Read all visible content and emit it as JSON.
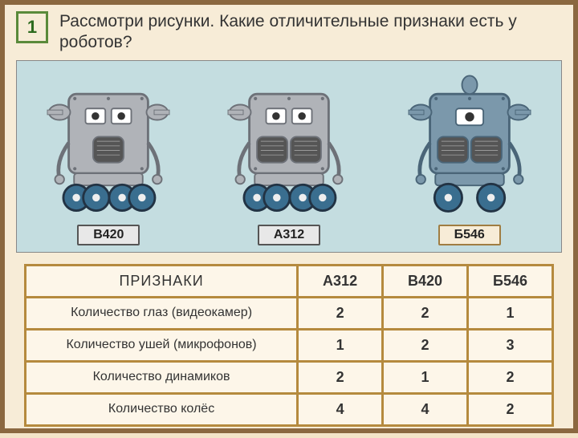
{
  "task_number": "1",
  "question": "Рассмотри рисунки. Какие отличительные признаки есть у роботов?",
  "robots": [
    {
      "id": "B420",
      "label": "В420",
      "body_color": "#b0b3b8",
      "body_stroke": "#6d7178",
      "wheels": 4,
      "eyes": 2,
      "ears": 2,
      "speakers": 1
    },
    {
      "id": "A312",
      "label": "А312",
      "body_color": "#b0b3b8",
      "body_stroke": "#6d7178",
      "wheels": 4,
      "eyes": 2,
      "ears": 1,
      "speakers": 2
    },
    {
      "id": "B546",
      "label": "Б546",
      "body_color": "#7b98ab",
      "body_stroke": "#4a6578",
      "wheels": 2,
      "eyes": 1,
      "ears": 3,
      "speakers": 2,
      "highlight": true
    }
  ],
  "table": {
    "header_feature": "ПРИЗНАКИ",
    "columns": [
      "А312",
      "В420",
      "Б546"
    ],
    "rows": [
      {
        "name": "Количество глаз (видеокамер)",
        "values": [
          "2",
          "2",
          "1"
        ]
      },
      {
        "name": "Количество ушей (микрофонов)",
        "values": [
          "1",
          "2",
          "3"
        ]
      },
      {
        "name": "Количество динамиков",
        "values": [
          "2",
          "1",
          "2"
        ]
      },
      {
        "name": "Количество колёс",
        "values": [
          "4",
          "4",
          "2"
        ]
      }
    ]
  },
  "colors": {
    "page_bg": "#f7ecd7",
    "border_brown": "#8b6840",
    "num_border": "#5a8a3a",
    "num_text": "#2d6b1f",
    "strip_bg": "#c4dde0",
    "table_border": "#b58a3e",
    "table_bg": "#fdf6e9",
    "wheel_color": "#3a6e8f"
  }
}
